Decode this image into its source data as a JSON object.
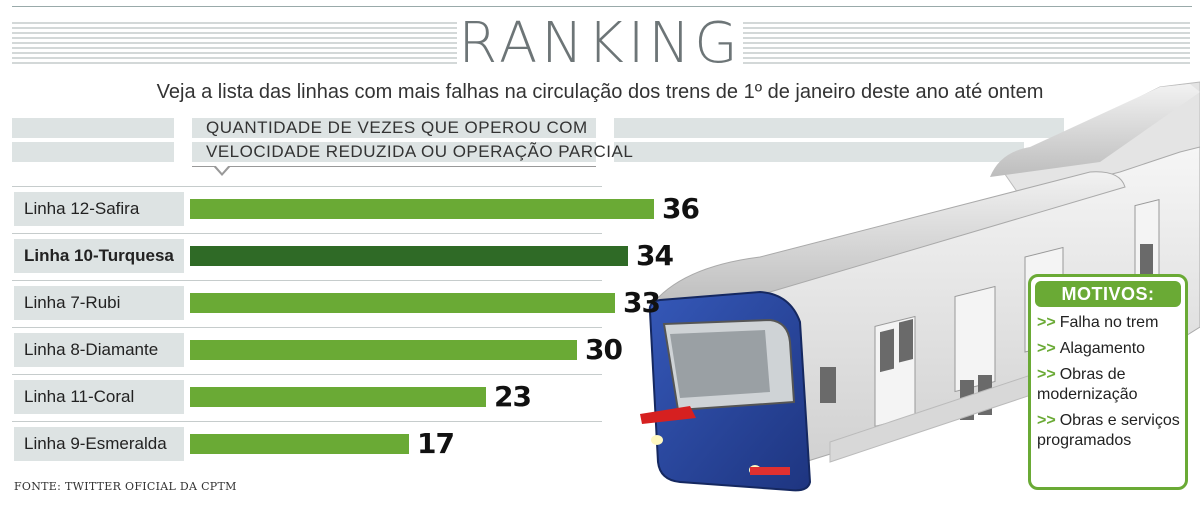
{
  "header": {
    "title": "RANKING",
    "subtitle": "Veja a lista das linhas com mais falhas na circulação dos trens de 1º de janeiro deste ano até ontem"
  },
  "chart_data": {
    "type": "bar",
    "orientation": "horizontal",
    "title": "RANKING",
    "subtitle": "Veja a lista das linhas com mais falhas na circulação dos trens de 1º de janeiro deste ano até ontem",
    "value_label_lines": [
      "QUANTIDADE DE VEZES QUE OPEROU COM",
      "VELOCIDADE REDUZIDA OU OPERAÇÃO PARCIAL"
    ],
    "categories": [
      "Linha 12-Safira",
      "Linha 10-Turquesa",
      "Linha 7-Rubi",
      "Linha 8-Diamante",
      "Linha 11-Coral",
      "Linha 9-Esmeralda"
    ],
    "values": [
      36,
      34,
      33,
      30,
      23,
      17
    ],
    "highlighted": "Linha 10-Turquesa",
    "xlim": [
      0,
      36
    ],
    "grid": false,
    "legend": "none",
    "colors": {
      "bar": "#6aaa35",
      "highlight": "#2f6a26"
    }
  },
  "motivos": {
    "title": "MOTIVOS:",
    "arrow": ">>",
    "items": [
      "Falha no trem",
      "Alagamento",
      "Obras de modernização",
      "Obras e serviços programados"
    ]
  },
  "source": "FONTE: TWITTER OFICIAL DA CPTM",
  "colors": {
    "accent": "#6aaa35",
    "accent_dark": "#2f6a26",
    "train_blue": "#2b4aa0",
    "signal_red": "#d62020"
  }
}
